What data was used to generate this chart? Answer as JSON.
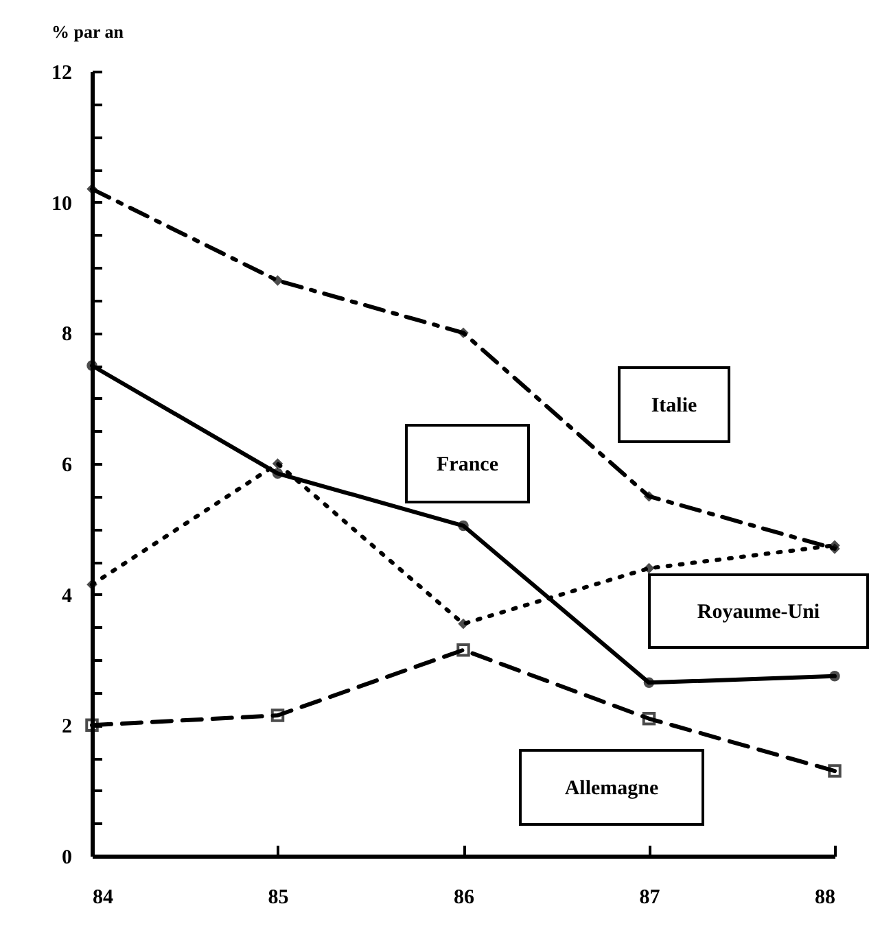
{
  "chart_data": {
    "type": "line",
    "ylabel": "% par an",
    "x": [
      84,
      85,
      86,
      87,
      88
    ],
    "xlim": [
      84,
      88
    ],
    "xticks": [
      84,
      85,
      86,
      87,
      88
    ],
    "ylim": [
      0,
      12
    ],
    "yticks": [
      0,
      {
        "value": 0.5,
        "label": null
      },
      {
        "value": 1,
        "label": null
      },
      {
        "value": 1.5,
        "label": null
      },
      2,
      {
        "value": 2.5,
        "label": null
      },
      {
        "value": 3,
        "label": null
      },
      {
        "value": 3.5,
        "label": null
      },
      4,
      {
        "value": 4.5,
        "label": null
      },
      {
        "value": 5,
        "label": null
      },
      {
        "value": 5.5,
        "label": null
      },
      6,
      {
        "value": 6.5,
        "label": null
      },
      {
        "value": 7,
        "label": null
      },
      {
        "value": 7.5,
        "label": null
      },
      8,
      {
        "value": 8.5,
        "label": null
      },
      {
        "value": 9,
        "label": null
      },
      {
        "value": 9.5,
        "label": null
      },
      10,
      {
        "value": 10.5,
        "label": null
      },
      {
        "value": 11,
        "label": null
      },
      {
        "value": 11.5,
        "label": null
      },
      12
    ],
    "grid": false,
    "legend": false,
    "series": [
      {
        "name": "France",
        "color": "#000000",
        "line_style": "solid",
        "marker": "circle",
        "values": [
          7.5,
          5.85,
          5.05,
          2.65,
          2.75
        ]
      },
      {
        "name": "Italie",
        "color": "#000000",
        "line_style": "dashdot",
        "marker": "diamond",
        "values": [
          10.2,
          8.8,
          8.0,
          5.5,
          4.7
        ]
      },
      {
        "name": "Royaume-Uni",
        "color": "#000000",
        "line_style": "dotted",
        "marker": "diamond",
        "values": [
          4.15,
          6.0,
          3.55,
          4.4,
          4.75
        ]
      },
      {
        "name": "Allemagne",
        "color": "#000000",
        "line_style": "dashed",
        "marker": "square",
        "values": [
          2.0,
          2.15,
          3.15,
          2.1,
          1.3
        ]
      }
    ]
  }
}
